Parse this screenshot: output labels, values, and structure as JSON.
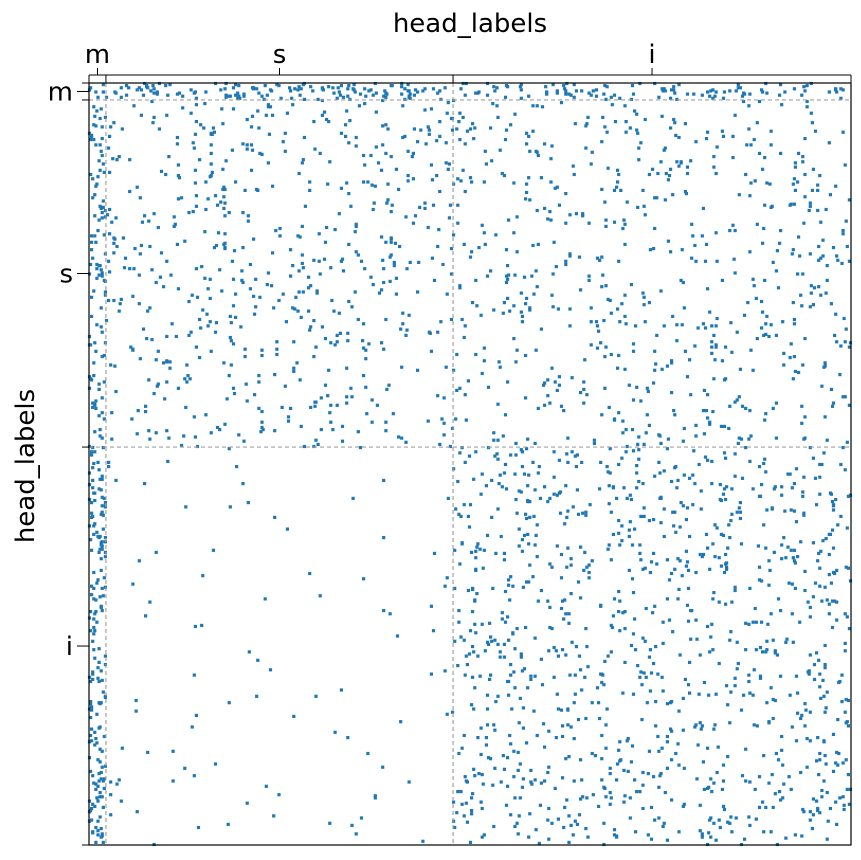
{
  "chart_data": {
    "type": "scatter",
    "subtype": "block adjacency / spy plot",
    "title": "",
    "xlabel": "head_labels",
    "ylabel": "head_labels",
    "x_axis_position": "top",
    "tick_labels": [
      "m",
      "s",
      "i"
    ],
    "groups": [
      {
        "label": "m",
        "start": 0,
        "end": 4,
        "center": 2
      },
      {
        "label": "s",
        "start": 4,
        "end": 86,
        "center": 45
      },
      {
        "label": "i",
        "start": 86,
        "end": 180,
        "center": 133
      }
    ],
    "xlim": [
      0,
      180
    ],
    "ylim": [
      180,
      0
    ],
    "grid": false,
    "group_separators": {
      "values": [
        4,
        86
      ],
      "style": "dashed",
      "color": "#a0a0a0"
    },
    "marker_color": "#1f77b4",
    "marker": "small dot",
    "legend": "none",
    "density_by_block": {
      "m-m": 0.55,
      "m-s": 0.4,
      "m-i": 0.3,
      "s-m": 0.35,
      "s-s": 0.09,
      "s-i": 0.08,
      "i-m": 0.4,
      "i-s": 0.012,
      "i-i": 0.12
    },
    "approx_point_count": 3300
  }
}
